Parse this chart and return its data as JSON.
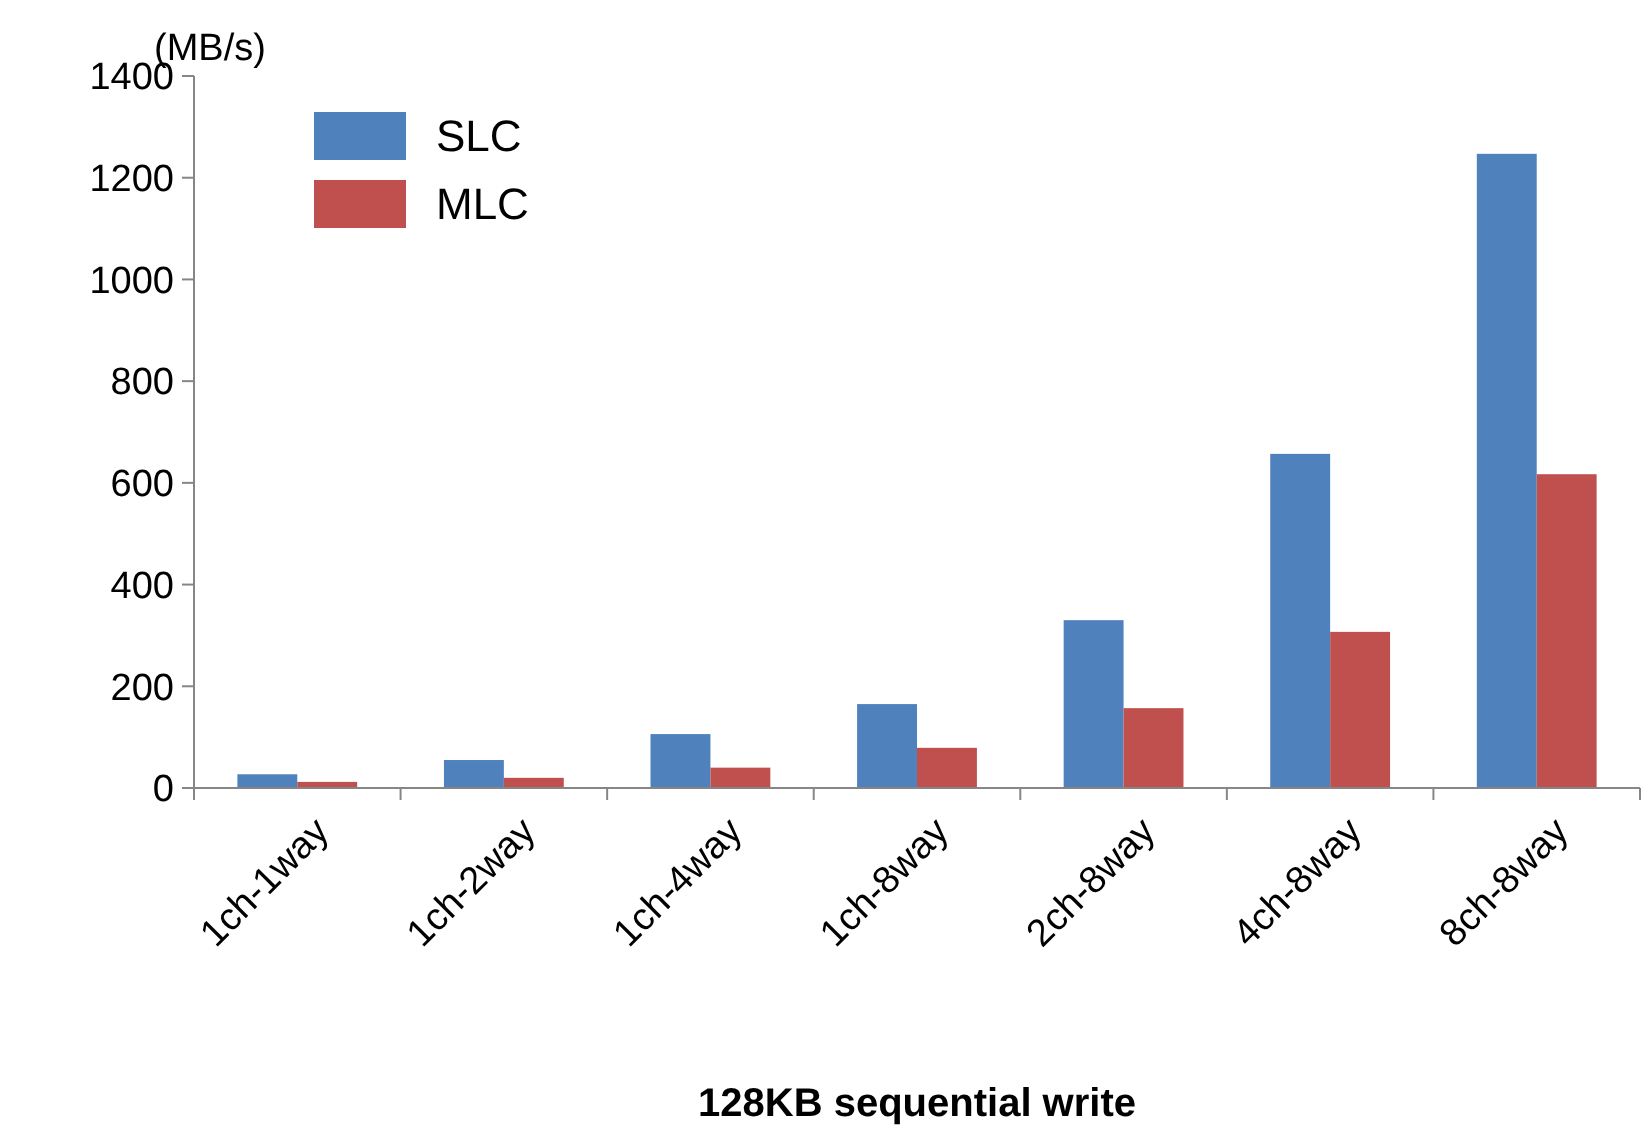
{
  "chart_data": {
    "type": "bar",
    "xlabel": "128KB sequential write",
    "ylabel": "(MB/s)",
    "categories": [
      "1ch-1way",
      "1ch-2way",
      "1ch-4way",
      "1ch-8way",
      "2ch-8way",
      "4ch-8way",
      "8ch-8way"
    ],
    "series": [
      {
        "name": "SLC",
        "color": "#4f81bd",
        "values": [
          27,
          55,
          106,
          165,
          330,
          657,
          1247
        ]
      },
      {
        "name": "MLC",
        "color": "#c0504d",
        "values": [
          12,
          20,
          40,
          79,
          157,
          307,
          617
        ]
      }
    ],
    "ylim": [
      0,
      1400
    ],
    "yticks": [
      0,
      200,
      400,
      600,
      800,
      1000,
      1200,
      1400
    ],
    "grid": false,
    "legend": "top left"
  }
}
